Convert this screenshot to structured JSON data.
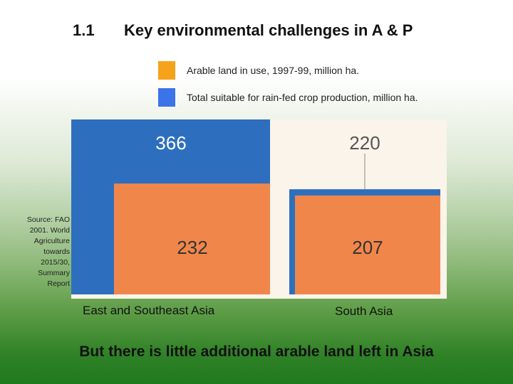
{
  "slide": {
    "section_number": "1.1",
    "title": "Key environmental challenges in A & P",
    "source_note": "Source: FAO 2001. World Agriculture towards 2015/30, Summary Report",
    "footer": "But there is little additional arable land left in Asia"
  },
  "legend": [
    {
      "label": "Arable land in use, 1997-99, million ha.",
      "color": "#f7a21b"
    },
    {
      "label": "Total suitable for rain-fed crop production, million ha.",
      "color": "#3b73e8"
    }
  ],
  "colors": {
    "suitable_bar": "#2d6fbe",
    "arable_bar": "#f1864b",
    "panel_background": "#fbf4ea",
    "connector": "#8a8a8a"
  },
  "chart_data": {
    "type": "bar",
    "categories": [
      "East and Southeast Asia",
      "South Asia"
    ],
    "series": [
      {
        "name": "Total suitable for rain-fed crop production, million ha.",
        "values": [
          366,
          220
        ]
      },
      {
        "name": "Arable land in use, 1997-99, million ha.",
        "values": [
          232,
          207
        ]
      }
    ],
    "title": "",
    "xlabel": "",
    "ylabel": "",
    "data_labels": {
      "suitable": [
        "366",
        "220"
      ],
      "arable": [
        "232",
        "207"
      ]
    },
    "legend_position": "top",
    "grid": false
  }
}
